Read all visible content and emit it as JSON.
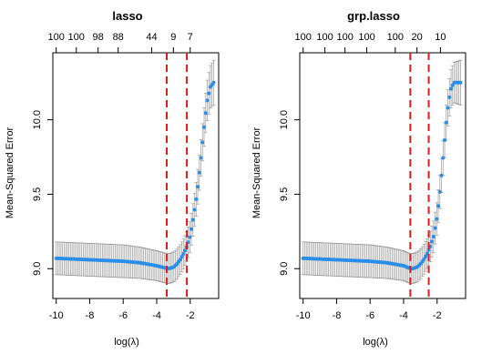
{
  "chart_data": [
    {
      "type": "line",
      "title": "lasso",
      "xlabel": "log(λ)",
      "ylabel": "Mean-Squared Error",
      "xlim": [
        -10.2,
        -0.3
      ],
      "ylim": [
        8.8,
        10.45
      ],
      "xticks": [
        -10,
        -8,
        -6,
        -4,
        -2
      ],
      "xtick_labels": [
        "-10",
        "-8",
        "-6",
        "-4",
        "-2"
      ],
      "yticks": [
        9.0,
        9.5,
        10.0
      ],
      "ytick_labels": [
        "9.0",
        "9.5",
        "10.0"
      ],
      "top_axis": {
        "x": [
          -10,
          -8.8,
          -7.5,
          -6.3,
          -4.3,
          -3.0,
          -2.0
        ],
        "labels": [
          "100",
          "100",
          "98",
          "88",
          "44",
          "9",
          "7"
        ]
      },
      "vlines": [
        -3.4,
        -2.2
      ],
      "grid": false,
      "legend": "none",
      "colors": {
        "point": "#2b8ee8",
        "error_bar": "#999999",
        "vline": "#e31a1c"
      },
      "curve": {
        "x": [
          -10,
          -9,
          -8,
          -7,
          -6,
          -5,
          -4.5,
          -4,
          -3.5,
          -3.3,
          -3.0,
          -2.8,
          -2.6,
          -2.4,
          -2.2,
          -2.0,
          -1.8,
          -1.6,
          -1.4,
          -1.2,
          -1.0,
          -0.8,
          -0.6
        ],
        "y": [
          9.07,
          9.065,
          9.06,
          9.055,
          9.05,
          9.04,
          9.03,
          9.02,
          9.005,
          9.0,
          9.01,
          9.03,
          9.06,
          9.1,
          9.15,
          9.22,
          9.35,
          9.5,
          9.7,
          9.92,
          10.12,
          10.22,
          10.25
        ]
      },
      "se": {
        "x": [
          -10,
          -6,
          -4,
          -3.4,
          -2.2,
          -1.4,
          -0.6
        ],
        "y": [
          0.11,
          0.11,
          0.1,
          0.1,
          0.1,
          0.12,
          0.15
        ]
      }
    },
    {
      "type": "line",
      "title": "grp.lasso",
      "xlabel": "log(λ)",
      "ylabel": "Mean-Squared Error",
      "xlim": [
        -10.2,
        -0.3
      ],
      "ylim": [
        8.8,
        10.45
      ],
      "xticks": [
        -10,
        -8,
        -6,
        -4,
        -2
      ],
      "xtick_labels": [
        "-10",
        "-8",
        "-6",
        "-4",
        "-2"
      ],
      "yticks": [
        9.0,
        9.5,
        10.0
      ],
      "ytick_labels": [
        "9.0",
        "9.5",
        "10.0"
      ],
      "top_axis": {
        "x": [
          -10,
          -8.7,
          -7.5,
          -6.2,
          -4.5,
          -3.2,
          -1.8
        ],
        "labels": [
          "100",
          "100",
          "100",
          "100",
          "100",
          "20",
          "10"
        ]
      },
      "vlines": [
        -3.6,
        -2.5
      ],
      "grid": false,
      "legend": "none",
      "colors": {
        "point": "#2b8ee8",
        "error_bar": "#999999",
        "vline": "#e31a1c"
      },
      "curve": {
        "x": [
          -10,
          -9,
          -8,
          -7,
          -6,
          -5,
          -4.5,
          -4,
          -3.7,
          -3.5,
          -3.2,
          -3.0,
          -2.8,
          -2.6,
          -2.4,
          -2.2,
          -2.0,
          -1.8,
          -1.6,
          -1.4,
          -1.2,
          -1.0,
          -0.8,
          -0.6
        ],
        "y": [
          9.07,
          9.065,
          9.06,
          9.055,
          9.05,
          9.04,
          9.03,
          9.02,
          9.005,
          9.0,
          9.01,
          9.03,
          9.06,
          9.1,
          9.15,
          9.22,
          9.35,
          9.55,
          9.8,
          10.05,
          10.2,
          10.25,
          10.25,
          10.25
        ]
      },
      "se": {
        "x": [
          -10,
          -6,
          -4,
          -3.6,
          -2.5,
          -1.4,
          -0.6
        ],
        "y": [
          0.11,
          0.11,
          0.1,
          0.1,
          0.1,
          0.12,
          0.15
        ]
      }
    }
  ]
}
